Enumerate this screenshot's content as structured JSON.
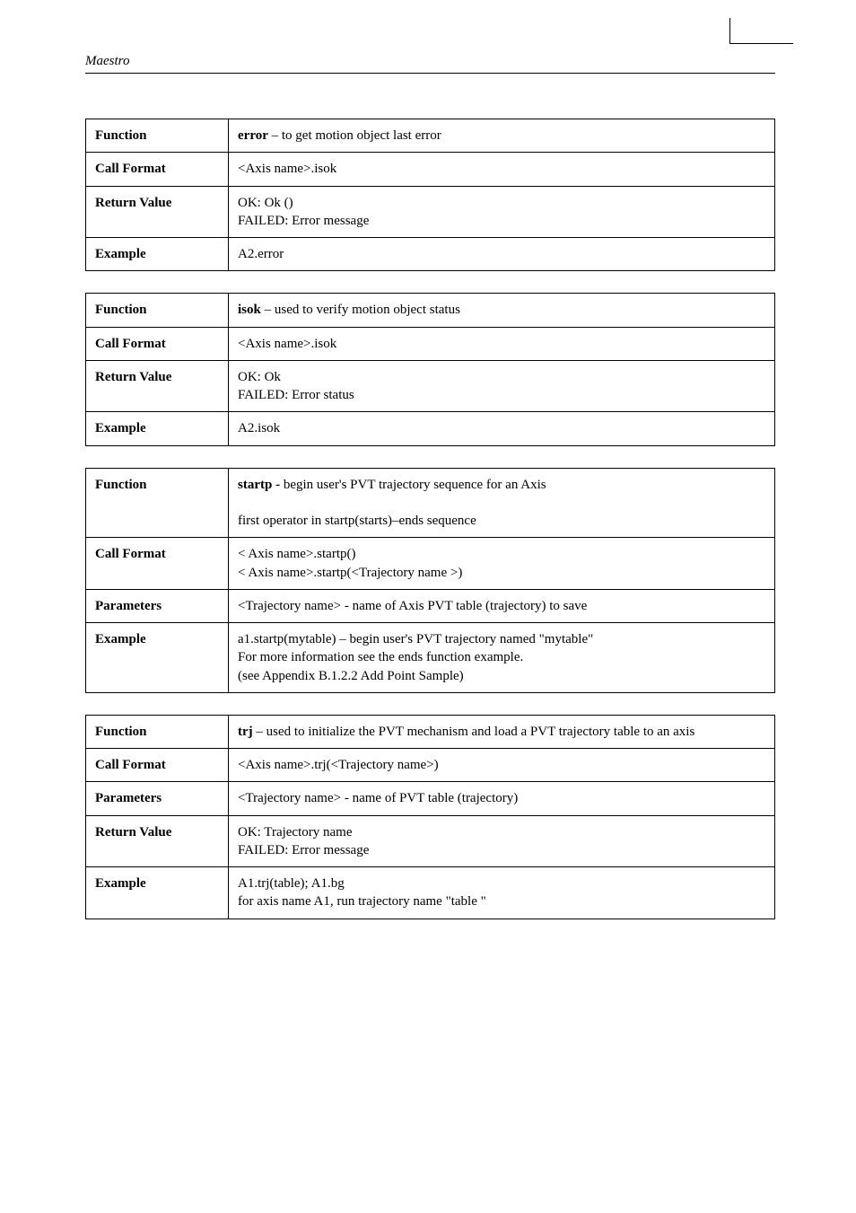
{
  "header": {
    "title": "Maestro"
  },
  "tables": [
    {
      "rows": [
        {
          "label": "Function",
          "content_bold": "error",
          "content_rest": " – to get motion object last error"
        },
        {
          "label": "Call Format",
          "content": "<Axis name>.isok"
        },
        {
          "label": "Return Value",
          "content": "OK: Ok ()\nFAILED: Error message"
        },
        {
          "label": "Example",
          "content": "A2.error"
        }
      ]
    },
    {
      "rows": [
        {
          "label": "Function",
          "content_bold": "isok",
          "content_rest": " – used to verify motion object status"
        },
        {
          "label": "Call Format",
          "content": "<Axis name>.isok"
        },
        {
          "label": "Return Value",
          "content": "OK: Ok\nFAILED: Error status"
        },
        {
          "label": "Example",
          "content": "A2.isok"
        }
      ]
    },
    {
      "rows": [
        {
          "label": "Function",
          "content_bold": "startp - ",
          "content_rest": "begin user's PVT trajectory sequence for an Axis\n\nfirst  operator  in startp(starts)–ends sequence"
        },
        {
          "label": "Call Format",
          "content": "< Axis name>.startp()\n< Axis name>.startp(<Trajectory name >)"
        },
        {
          "label": "Parameters",
          "content": "<Trajectory name> - name of Axis PVT table (trajectory) to save"
        },
        {
          "label": "Example",
          "content": "a1.startp(mytable) – begin user's PVT trajectory named \"mytable\"\nFor more information see the ends function example.\n(see Appendix B.1.2.2 Add Point Sample)"
        }
      ]
    },
    {
      "rows": [
        {
          "label": "Function",
          "content_bold": "trj",
          "content_rest": " – used to  initialize the PVT mechanism and load a PVT trajectory table to an axis"
        },
        {
          "label": "Call Format",
          "content": "<Axis name>.trj(<Trajectory name>)"
        },
        {
          "label": "Parameters",
          "content": "<Trajectory name> - name of PVT table (trajectory)"
        },
        {
          "label": "Return Value",
          "content": "OK: Trajectory name\nFAILED: Error message"
        },
        {
          "label": "Example",
          "content": "A1.trj(table); A1.bg\n  for axis name A1, run trajectory name \"table \""
        }
      ]
    }
  ]
}
